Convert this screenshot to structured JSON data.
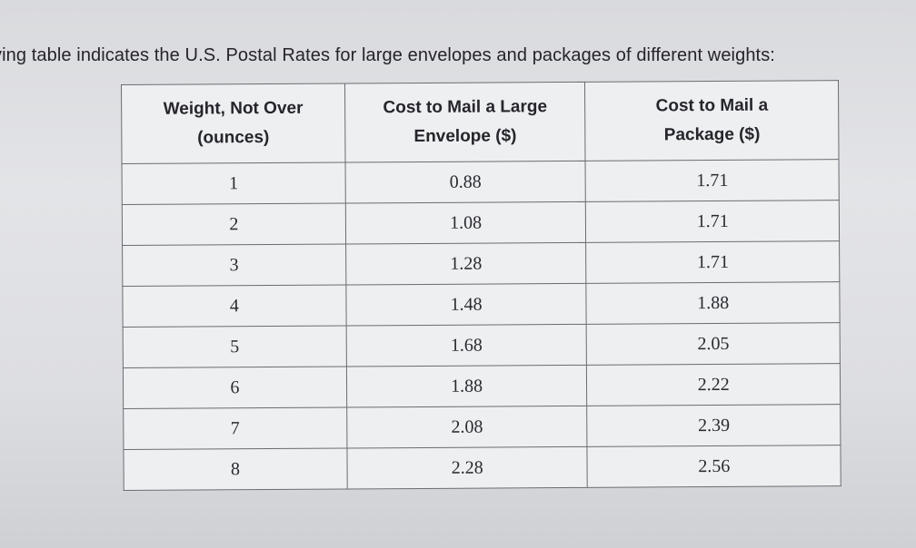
{
  "intro_text": "ving table indicates the U.S. Postal Rates for large envelopes and packages of different weights:",
  "table": {
    "headers": {
      "weight": [
        "Weight, Not Over",
        "(ounces)"
      ],
      "envelope": [
        "Cost to Mail a Large",
        "Envelope ($)"
      ],
      "package": [
        "Cost to Mail a",
        "Package ($)"
      ]
    },
    "rows": [
      {
        "weight": "1",
        "envelope": "0.88",
        "package": "1.71"
      },
      {
        "weight": "2",
        "envelope": "1.08",
        "package": "1.71"
      },
      {
        "weight": "3",
        "envelope": "1.28",
        "package": "1.71"
      },
      {
        "weight": "4",
        "envelope": "1.48",
        "package": "1.88"
      },
      {
        "weight": "5",
        "envelope": "1.68",
        "package": "2.05"
      },
      {
        "weight": "6",
        "envelope": "1.88",
        "package": "2.22"
      },
      {
        "weight": "7",
        "envelope": "2.08",
        "package": "2.39"
      },
      {
        "weight": "8",
        "envelope": "2.28",
        "package": "2.56"
      }
    ]
  }
}
